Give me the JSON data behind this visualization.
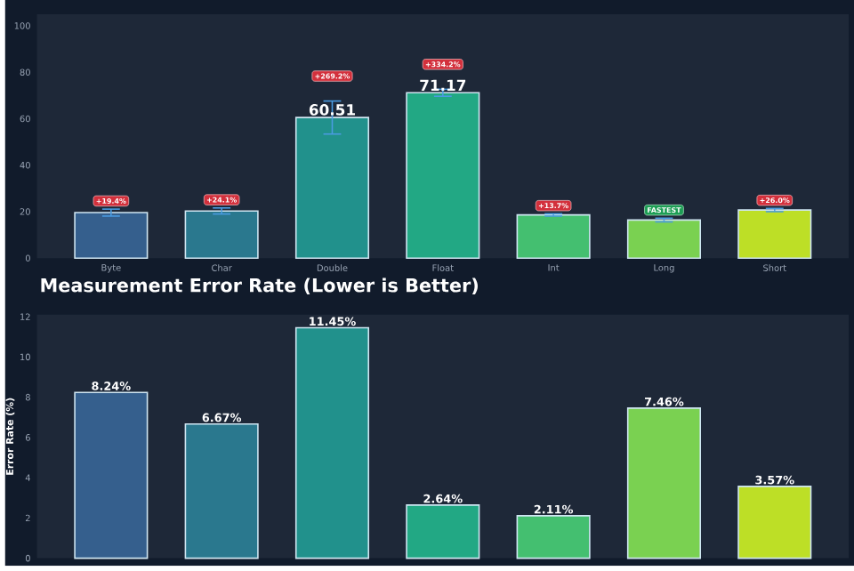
{
  "chart_data": [
    {
      "type": "bar",
      "categories": [
        "Byte",
        "Char",
        "Double",
        "Float",
        "Int",
        "Long",
        "Short"
      ],
      "values": [
        19.6,
        20.3,
        60.51,
        71.17,
        18.6,
        16.4,
        20.7
      ],
      "colors": [
        "#355f8d",
        "#2a788e",
        "#21918c",
        "#22a884",
        "#44bf70",
        "#7ad151",
        "#bddf26"
      ],
      "errors": [
        1.5,
        1.3,
        7.1,
        1.5,
        0.5,
        0.8,
        0.7
      ],
      "value_labels": [
        null,
        null,
        "60.51",
        "71.17",
        null,
        null,
        null
      ],
      "annotations": [
        "+19.4%",
        "+24.1%",
        "+269.2%",
        "+334.2%",
        "+13.7%",
        "FASTEST",
        "+26.0%"
      ],
      "ylim": [
        0,
        105
      ],
      "yticks": [
        0,
        20,
        40,
        60,
        80,
        100
      ]
    },
    {
      "type": "bar",
      "title": "Measurement Error Rate (Lower is Better)",
      "ylabel": "Error Rate (%)",
      "categories": [
        null,
        null,
        null,
        null,
        null,
        null,
        null
      ],
      "values": [
        8.24,
        6.67,
        11.45,
        2.64,
        2.11,
        7.46,
        3.57
      ],
      "colors": [
        "#355f8d",
        "#2a788e",
        "#21918c",
        "#22a884",
        "#44bf70",
        "#7ad151",
        "#bddf26"
      ],
      "value_labels": [
        "8.24%",
        "6.67%",
        "11.45%",
        "2.64%",
        "2.11%",
        "7.46%",
        "3.57%"
      ],
      "ylim": [
        0,
        12.1
      ],
      "yticks": [
        0,
        2,
        4,
        6,
        8,
        10,
        12
      ],
      "tick_labels": "y"
    }
  ]
}
